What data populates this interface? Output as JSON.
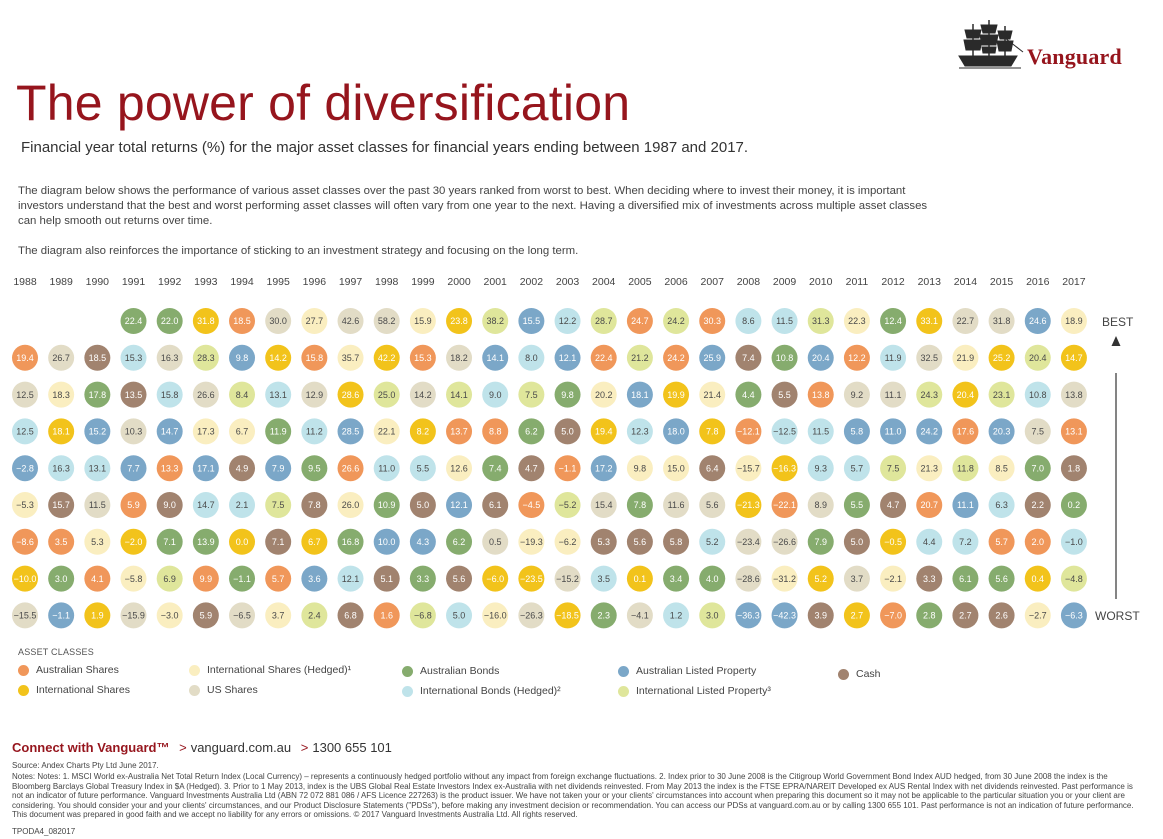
{
  "brand": {
    "name": "Vanguard",
    "logo_icon": "ship-icon"
  },
  "title": "The power of diversification",
  "subtitle": "Financial year total returns (%) for the major asset classes for financial years ending between 1987 and 2017.",
  "paragraphs": [
    "The diagram below shows the performance of various asset classes over the past 30 years ranked from worst to best. When deciding where to invest their money, it is important investors understand that the best and worst performing asset classes will often vary from one year to the next. Having a diversified mix of investments across multiple asset classes can help smooth out returns over time.",
    "The diagram also reinforces the importance of sticking to an investment strategy and focusing on the long term."
  ],
  "axis": {
    "best": "BEST",
    "worst": "WORST"
  },
  "legend": {
    "title": "ASSET CLASSES",
    "items": [
      {
        "key": "AS",
        "label": "Australian Shares",
        "color": "#f0975a"
      },
      {
        "key": "IS",
        "label": "International Shares",
        "color": "#f2c31b"
      },
      {
        "key": "ISH",
        "label": "International Shares (Hedged)¹",
        "color": "#faeec0"
      },
      {
        "key": "US",
        "label": "US Shares",
        "color": "#e2dcc6"
      },
      {
        "key": "AB",
        "label": "Australian Bonds",
        "color": "#86ac6e"
      },
      {
        "key": "IB",
        "label": "International Bonds (Hedged)²",
        "color": "#bfe3ea"
      },
      {
        "key": "ALP",
        "label": "Australian Listed Property",
        "color": "#7ba7c8"
      },
      {
        "key": "ILP",
        "label": "International Listed Property³",
        "color": "#dfe69b"
      },
      {
        "key": "C",
        "label": "Cash",
        "color": "#a1836f"
      }
    ]
  },
  "chart_data": {
    "type": "table",
    "x": [
      "1988",
      "1989",
      "1990",
      "1991",
      "1992",
      "1993",
      "1994",
      "1995",
      "1996",
      "1997",
      "1998",
      "1999",
      "2000",
      "2001",
      "2002",
      "2003",
      "2004",
      "2005",
      "2006",
      "2007",
      "2008",
      "2009",
      "2010",
      "2011",
      "2012",
      "2013",
      "2014",
      "2015",
      "2016",
      "2017"
    ],
    "ranking": "Each year's column lists asset class returns ordered from best (top) to worst (bottom)",
    "columns": [
      [
        [
          "AS",
          19.4
        ],
        [
          "US",
          12.5
        ],
        [
          "IB",
          12.5
        ],
        [
          "ALP",
          -2.8
        ],
        [
          "ISH",
          -5.3
        ],
        [
          "AS",
          -8.6
        ],
        [
          "IS",
          -10.0
        ],
        [
          "US",
          -15.5
        ]
      ],
      [
        [
          "US",
          26.7
        ],
        [
          "ISH",
          18.3
        ],
        [
          "IS",
          18.1
        ],
        [
          "IB",
          16.3
        ],
        [
          "C",
          15.7
        ],
        [
          "AS",
          3.5
        ],
        [
          "AB",
          3.0
        ],
        [
          "ALP",
          -1.1
        ]
      ],
      [
        [
          "C",
          18.5
        ],
        [
          "AB",
          17.8
        ],
        [
          "ALP",
          15.2
        ],
        [
          "IB",
          13.1
        ],
        [
          "US",
          11.5
        ],
        [
          "ISH",
          5.3
        ],
        [
          "AS",
          4.1
        ],
        [
          "IS",
          1.9
        ]
      ],
      [
        [
          "AB",
          22.4
        ],
        [
          "IB",
          15.3
        ],
        [
          "C",
          13.5
        ],
        [
          "US",
          10.3
        ],
        [
          "ALP",
          7.7
        ],
        [
          "AS",
          5.9
        ],
        [
          "IS",
          -2.0
        ],
        [
          "ISH",
          -5.8
        ],
        [
          "US",
          -15.9
        ]
      ],
      [
        [
          "AB",
          22.0
        ],
        [
          "US",
          16.3
        ],
        [
          "IB",
          15.8
        ],
        [
          "ALP",
          14.7
        ],
        [
          "AS",
          13.3
        ],
        [
          "C",
          9.0
        ],
        [
          "AB",
          7.1
        ],
        [
          "ILP",
          6.9
        ],
        [
          "ISH",
          -3.0
        ]
      ],
      [
        [
          "IS",
          31.8
        ],
        [
          "ILP",
          28.3
        ],
        [
          "US",
          26.6
        ],
        [
          "ISH",
          17.3
        ],
        [
          "ALP",
          17.1
        ],
        [
          "IB",
          14.7
        ],
        [
          "AB",
          13.9
        ],
        [
          "AS",
          9.9
        ],
        [
          "C",
          5.9
        ]
      ],
      [
        [
          "AS",
          18.5
        ],
        [
          "ALP",
          9.8
        ],
        [
          "ILP",
          8.4
        ],
        [
          "ISH",
          6.7
        ],
        [
          "C",
          4.9
        ],
        [
          "IB",
          2.1
        ],
        [
          "IS",
          0.0
        ],
        [
          "AB",
          -1.1
        ],
        [
          "US",
          -6.5
        ]
      ],
      [
        [
          "US",
          30.0
        ],
        [
          "IS",
          14.2
        ],
        [
          "IB",
          13.1
        ],
        [
          "AB",
          11.9
        ],
        [
          "ALP",
          7.9
        ],
        [
          "ILP",
          7.5
        ],
        [
          "C",
          7.1
        ],
        [
          "AS",
          5.7
        ],
        [
          "ISH",
          3.7
        ]
      ],
      [
        [
          "ISH",
          27.7
        ],
        [
          "AS",
          15.8
        ],
        [
          "US",
          12.9
        ],
        [
          "IB",
          11.2
        ],
        [
          "AB",
          9.5
        ],
        [
          "C",
          7.8
        ],
        [
          "IS",
          6.7
        ],
        [
          "ALP",
          3.6
        ],
        [
          "ILP",
          2.4
        ]
      ],
      [
        [
          "US",
          42.6
        ],
        [
          "ISH",
          35.7
        ],
        [
          "IS",
          28.6
        ],
        [
          "ALP",
          28.5
        ],
        [
          "AS",
          26.6
        ],
        [
          "ISH",
          26.0
        ],
        [
          "AB",
          16.8
        ],
        [
          "IB",
          12.1
        ],
        [
          "C",
          6.8
        ]
      ],
      [
        [
          "US",
          58.2
        ],
        [
          "IS",
          42.2
        ],
        [
          "ILP",
          25.0
        ],
        [
          "ISH",
          22.1
        ],
        [
          "IB",
          11.0
        ],
        [
          "AB",
          10.9
        ],
        [
          "ALP",
          10.0
        ],
        [
          "C",
          5.1
        ],
        [
          "AS",
          1.6
        ]
      ],
      [
        [
          "ISH",
          15.9
        ],
        [
          "AS",
          15.3
        ],
        [
          "US",
          14.2
        ],
        [
          "IS",
          8.2
        ],
        [
          "IB",
          5.5
        ],
        [
          "C",
          5.0
        ],
        [
          "ALP",
          4.3
        ],
        [
          "AB",
          3.3
        ],
        [
          "ILP",
          -6.8
        ]
      ],
      [
        [
          "IS",
          23.8
        ],
        [
          "US",
          18.2
        ],
        [
          "ILP",
          14.1
        ],
        [
          "AS",
          13.7
        ],
        [
          "ISH",
          12.6
        ],
        [
          "ALP",
          12.1
        ],
        [
          "AB",
          6.2
        ],
        [
          "C",
          5.6
        ],
        [
          "IB",
          5.0
        ]
      ],
      [
        [
          "ILP",
          38.2
        ],
        [
          "ALP",
          14.1
        ],
        [
          "IB",
          9.0
        ],
        [
          "AS",
          8.8
        ],
        [
          "AB",
          7.4
        ],
        [
          "C",
          6.1
        ],
        [
          "US",
          0.5
        ],
        [
          "IS",
          -6.0
        ],
        [
          "ISH",
          -16.0
        ]
      ],
      [
        [
          "ALP",
          15.5
        ],
        [
          "IB",
          8.0
        ],
        [
          "ILP",
          7.5
        ],
        [
          "AB",
          6.2
        ],
        [
          "C",
          4.7
        ],
        [
          "AS",
          -4.5
        ],
        [
          "ISH",
          -19.3
        ],
        [
          "IS",
          -23.5
        ],
        [
          "US",
          -26.3
        ]
      ],
      [
        [
          "IB",
          12.2
        ],
        [
          "ALP",
          12.1
        ],
        [
          "AB",
          9.8
        ],
        [
          "C",
          5.0
        ],
        [
          "AS",
          -1.1
        ],
        [
          "ILP",
          -5.2
        ],
        [
          "ISH",
          -6.2
        ],
        [
          "US",
          -15.2
        ],
        [
          "IS",
          -18.5
        ]
      ],
      [
        [
          "ILP",
          28.7
        ],
        [
          "AS",
          22.4
        ],
        [
          "ISH",
          20.2
        ],
        [
          "IS",
          19.4
        ],
        [
          "ALP",
          17.2
        ],
        [
          "US",
          15.4
        ],
        [
          "C",
          5.3
        ],
        [
          "IB",
          3.5
        ],
        [
          "AB",
          2.3
        ]
      ],
      [
        [
          "AS",
          24.7
        ],
        [
          "ILP",
          21.2
        ],
        [
          "ALP",
          18.1
        ],
        [
          "IB",
          12.3
        ],
        [
          "ISH",
          9.8
        ],
        [
          "AB",
          7.8
        ],
        [
          "C",
          5.6
        ],
        [
          "IS",
          0.1
        ],
        [
          "US",
          -4.1
        ]
      ],
      [
        [
          "ILP",
          24.2
        ],
        [
          "AS",
          24.2
        ],
        [
          "IS",
          19.9
        ],
        [
          "ALP",
          18.0
        ],
        [
          "ISH",
          15.0
        ],
        [
          "US",
          11.6
        ],
        [
          "C",
          5.8
        ],
        [
          "AB",
          3.4
        ],
        [
          "IB",
          1.2
        ]
      ],
      [
        [
          "AS",
          30.3
        ],
        [
          "ALP",
          25.9
        ],
        [
          "ISH",
          21.4
        ],
        [
          "IS",
          7.8
        ],
        [
          "C",
          6.4
        ],
        [
          "US",
          5.6
        ],
        [
          "IB",
          5.2
        ],
        [
          "AB",
          4.0
        ],
        [
          "ILP",
          3.0
        ]
      ],
      [
        [
          "IB",
          8.6
        ],
        [
          "C",
          7.4
        ],
        [
          "AB",
          4.4
        ],
        [
          "AS",
          -12.1
        ],
        [
          "ISH",
          -15.7
        ],
        [
          "IS",
          -21.3
        ],
        [
          "US",
          -23.4
        ],
        [
          "US",
          -28.6
        ],
        [
          "ALP",
          -36.3
        ]
      ],
      [
        [
          "IB",
          11.5
        ],
        [
          "AB",
          10.8
        ],
        [
          "C",
          5.5
        ],
        [
          "IB",
          -12.5
        ],
        [
          "IS",
          -16.3
        ],
        [
          "AS",
          -22.1
        ],
        [
          "US",
          -26.6
        ],
        [
          "ISH",
          -31.2
        ],
        [
          "ALP",
          -42.3
        ]
      ],
      [
        [
          "ILP",
          31.3
        ],
        [
          "ALP",
          20.4
        ],
        [
          "AS",
          13.8
        ],
        [
          "IB",
          11.5
        ],
        [
          "IB",
          9.3
        ],
        [
          "US",
          8.9
        ],
        [
          "AB",
          7.9
        ],
        [
          "IS",
          5.2
        ],
        [
          "C",
          3.9
        ]
      ],
      [
        [
          "ISH",
          22.3
        ],
        [
          "AS",
          12.2
        ],
        [
          "US",
          9.2
        ],
        [
          "ALP",
          5.8
        ],
        [
          "IB",
          5.7
        ],
        [
          "AB",
          5.5
        ],
        [
          "C",
          5.0
        ],
        [
          "US",
          3.7
        ],
        [
          "IS",
          2.7
        ]
      ],
      [
        [
          "AB",
          12.4
        ],
        [
          "IB",
          11.9
        ],
        [
          "US",
          11.1
        ],
        [
          "ALP",
          11.0
        ],
        [
          "ILP",
          7.5
        ],
        [
          "C",
          4.7
        ],
        [
          "IS",
          -0.5
        ],
        [
          "ISH",
          -2.1
        ],
        [
          "AS",
          -7.0
        ]
      ],
      [
        [
          "IS",
          33.1
        ],
        [
          "US",
          32.5
        ],
        [
          "ILP",
          24.3
        ],
        [
          "ALP",
          24.2
        ],
        [
          "ISH",
          21.3
        ],
        [
          "AS",
          20.7
        ],
        [
          "IB",
          4.4
        ],
        [
          "C",
          3.3
        ],
        [
          "AB",
          2.8
        ]
      ],
      [
        [
          "US",
          22.7
        ],
        [
          "ISH",
          21.9
        ],
        [
          "IS",
          20.4
        ],
        [
          "AS",
          17.6
        ],
        [
          "ILP",
          11.8
        ],
        [
          "ALP",
          11.1
        ],
        [
          "IB",
          7.2
        ],
        [
          "AB",
          6.1
        ],
        [
          "C",
          2.7
        ]
      ],
      [
        [
          "US",
          31.8
        ],
        [
          "IS",
          25.2
        ],
        [
          "ILP",
          23.1
        ],
        [
          "ALP",
          20.3
        ],
        [
          "ISH",
          8.5
        ],
        [
          "IB",
          6.3
        ],
        [
          "AS",
          5.7
        ],
        [
          "AB",
          5.6
        ],
        [
          "C",
          2.6
        ]
      ],
      [
        [
          "ALP",
          24.6
        ],
        [
          "ILP",
          20.4
        ],
        [
          "IB",
          10.8
        ],
        [
          "US",
          7.5
        ],
        [
          "AB",
          7.0
        ],
        [
          "C",
          2.2
        ],
        [
          "AS",
          2.0
        ],
        [
          "IS",
          0.4
        ],
        [
          "ISH",
          -2.7
        ]
      ],
      [
        [
          "ISH",
          18.9
        ],
        [
          "IS",
          14.7
        ],
        [
          "US",
          13.8
        ],
        [
          "AS",
          13.1
        ],
        [
          "C",
          1.8
        ],
        [
          "AB",
          0.2
        ],
        [
          "IB",
          -1.0
        ],
        [
          "ILP",
          -4.8
        ],
        [
          "ALP",
          -6.3
        ]
      ]
    ]
  },
  "connect": {
    "label": "Connect with Vanguard™",
    "web": "vanguard.com.au",
    "phone": "1300 655 101",
    "separator": ">"
  },
  "source": "Source: Andex Charts Pty Ltd June 2017.",
  "notes": "Notes: Notes: 1. MSCI World ex-Australia Net Total Return Index (Local Currency) – represents a continuously hedged portfolio without any impact from foreign exchange fluctuations. 2. Index prior to 30 June 2008 is the Citigroup World Government Bond Index AUD hedged, from 30 June 2008 the index is the Bloomberg Barclays Global Treasury Index in $A (Hedged). 3. Prior to 1 May 2013, index is the UBS Global Real Estate Investors Index ex-Australia with net dividends reinvested. From May 2013 the index is the FTSE EPRA/NAREIT Developed ex AUS Rental Index with net dividends reinvested. Past performance is not an indicator of future performance. Vanguard Investments Australia Ltd (ABN 72 072 881 086 / AFS Licence 227263) is the product issuer. We have not taken your or your clients' circumstances into account when preparing this document so it may not be applicable to the particular situation you or your client are considering. You should consider your and your clients' circumstances, and our Product Disclosure Statements (\"PDSs\"), before making any investment decision or recommendation. You can access our PDSs at vanguard.com.au or by calling 1300 655 101. Past performance is not an indication of future performance. This document was prepared in good faith and we accept no liability for any errors or omissions. © 2017 Vanguard Investments Australia Ltd. All rights reserved.",
  "doc_code": "TPODA4_082017"
}
